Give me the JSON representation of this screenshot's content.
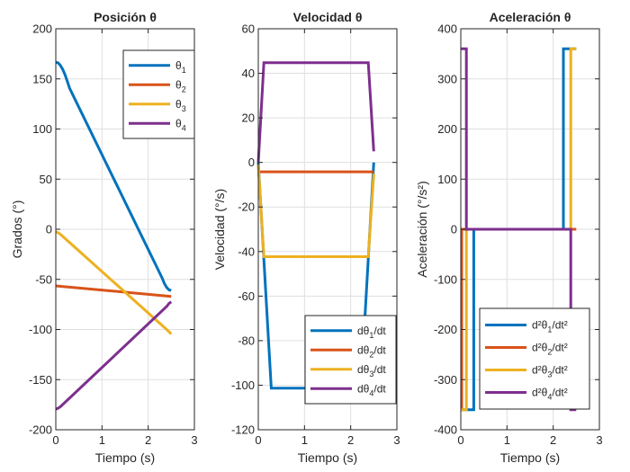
{
  "figure": {
    "background": "#ffffff"
  },
  "colors": {
    "c1": "#0072BD",
    "c2": "#D95319",
    "c3": "#EDB120",
    "c4": "#7E2F8E",
    "grid": "#DFDFDF",
    "axis": "#262626"
  },
  "chart_data": [
    {
      "type": "line",
      "title": "Posición θ",
      "xlabel": "Tiempo (s)",
      "ylabel": "Grados (°)",
      "xlim": [
        0,
        3
      ],
      "ylim": [
        -200,
        200
      ],
      "xticks": [
        0,
        1,
        2,
        3
      ],
      "yticks": [
        -200,
        -150,
        -100,
        -50,
        0,
        50,
        100,
        150,
        200
      ],
      "grid": true,
      "legend_position": "top-right",
      "series": [
        {
          "name": "θ₁",
          "label_base": "θ",
          "label_sub": "1",
          "label_tail": "",
          "color": "#0072BD",
          "x": [
            0,
            0.05,
            0.1,
            0.15,
            0.2,
            0.25,
            0.3,
            2.3,
            2.35,
            2.4,
            2.45,
            2.5
          ],
          "y": [
            166.5,
            166,
            163.5,
            159.5,
            154,
            147.5,
            140.5,
            -48.5,
            -54,
            -58,
            -60.5,
            -61
          ]
        },
        {
          "name": "θ₂",
          "label_base": "θ",
          "label_sub": "2",
          "label_tail": "",
          "color": "#D95319",
          "x": [
            0,
            2.5
          ],
          "y": [
            -56.5,
            -67
          ]
        },
        {
          "name": "θ₃",
          "label_base": "θ",
          "label_sub": "3",
          "label_tail": "",
          "color": "#EDB120",
          "x": [
            0,
            0.05,
            0.1,
            2.4,
            2.5
          ],
          "y": [
            -2.5,
            -3.5,
            -5,
            -100,
            -104.5
          ]
        },
        {
          "name": "θ₄",
          "label_base": "θ",
          "label_sub": "4",
          "label_tail": "",
          "color": "#7E2F8E",
          "x": [
            0,
            0.05,
            0.1,
            2.4,
            2.45,
            2.5
          ],
          "y": [
            -179.5,
            -178.5,
            -177,
            -77,
            -74,
            -72.5
          ]
        }
      ]
    },
    {
      "type": "line",
      "title": "Velocidad θ",
      "xlabel": "Tiempo (s)",
      "ylabel": "Velocidad (°/s)",
      "xlim": [
        0,
        3
      ],
      "ylim": [
        -120,
        60
      ],
      "xticks": [
        0,
        1,
        2,
        3
      ],
      "yticks": [
        -120,
        -100,
        -80,
        -60,
        -40,
        -20,
        0,
        20,
        40,
        60
      ],
      "grid": true,
      "legend_position": "bottom-right",
      "series": [
        {
          "name": "dθ₁/dt",
          "label_base": "dθ",
          "label_sub": "1",
          "label_tail": "/dt",
          "color": "#0072BD",
          "x": [
            0,
            0.28,
            2.22,
            2.5
          ],
          "y": [
            0,
            -101.3,
            -101.3,
            0
          ]
        },
        {
          "name": "dθ₂/dt",
          "label_base": "dθ",
          "label_sub": "2",
          "label_tail": "/dt",
          "color": "#D95319",
          "x": [
            0,
            2.5
          ],
          "y": [
            -4.2,
            -4.2
          ]
        },
        {
          "name": "dθ₃/dt",
          "label_base": "dθ",
          "label_sub": "3",
          "label_tail": "/dt",
          "color": "#EDB120",
          "x": [
            0,
            0.12,
            2.38,
            2.5
          ],
          "y": [
            -1,
            -42.3,
            -42.3,
            -5
          ]
        },
        {
          "name": "dθ₄/dt",
          "label_base": "dθ",
          "label_sub": "4",
          "label_tail": "/dt",
          "color": "#7E2F8E",
          "x": [
            0,
            0.12,
            2.38,
            2.5
          ],
          "y": [
            0,
            44.8,
            44.8,
            5
          ]
        }
      ]
    },
    {
      "type": "line",
      "title": "Aceleración θ",
      "xlabel": "Tiempo (s)",
      "ylabel": "Aceleración (°/s²)",
      "xlim": [
        0,
        3
      ],
      "ylim": [
        -400,
        400
      ],
      "xticks": [
        0,
        1,
        2,
        3
      ],
      "yticks": [
        -400,
        -300,
        -200,
        -100,
        0,
        100,
        200,
        300,
        400
      ],
      "grid": true,
      "legend_position": "bottom-right",
      "series": [
        {
          "name": "d²θ₁/dt²",
          "label_base": "d²θ",
          "label_sub": "1",
          "label_tail": "/dt²",
          "color": "#0072BD",
          "x": [
            0,
            0.28,
            0.28,
            2.22,
            2.22,
            2.5
          ],
          "y": [
            -360,
            -360,
            0,
            0,
            360,
            360
          ]
        },
        {
          "name": "d²θ₂/dt²",
          "label_base": "d²θ",
          "label_sub": "2",
          "label_tail": "/dt²",
          "color": "#D95319",
          "x": [
            0,
            0.02,
            0.02,
            2.5
          ],
          "y": [
            -360,
            -360,
            0,
            0
          ]
        },
        {
          "name": "d²θ₃/dt²",
          "label_base": "d²θ",
          "label_sub": "3",
          "label_tail": "/dt²",
          "color": "#EDB120",
          "x": [
            0,
            0.12,
            0.12,
            2.38,
            2.38,
            2.5
          ],
          "y": [
            -360,
            -360,
            0,
            0,
            360,
            360
          ]
        },
        {
          "name": "d²θ₄/dt²",
          "label_base": "d²θ",
          "label_sub": "4",
          "label_tail": "/dt²",
          "color": "#7E2F8E",
          "x": [
            0,
            0.12,
            0.12,
            2.38,
            2.38,
            2.5
          ],
          "y": [
            360,
            360,
            0,
            0,
            -360,
            -360
          ]
        }
      ]
    }
  ]
}
